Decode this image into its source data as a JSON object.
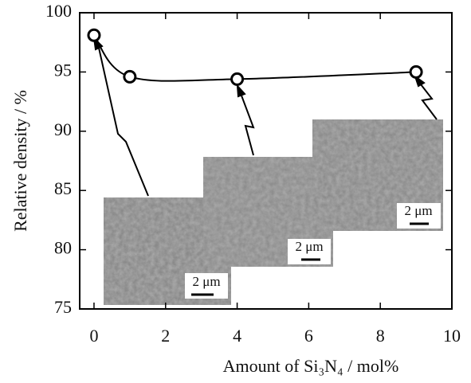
{
  "chart_data": {
    "type": "line",
    "x_label": "Amount of Si₃N₄ / mol%",
    "y_label": "Relative density / %",
    "x": [
      0,
      1,
      4,
      9
    ],
    "series": [
      {
        "color": "#000000",
        "values": [
          98.1,
          94.6,
          94.4,
          95.0
        ]
      }
    ],
    "xlim": [
      -0.4,
      10
    ],
    "xticks": [
      0,
      2,
      4,
      6,
      8,
      10
    ],
    "ylim": [
      75,
      100
    ],
    "yticks": [
      75,
      80,
      85,
      90,
      95,
      100
    ],
    "insets": [
      {
        "scale_label": "2 μm"
      },
      {
        "scale_label": "2 μm"
      },
      {
        "scale_label": "2 μm"
      }
    ]
  }
}
